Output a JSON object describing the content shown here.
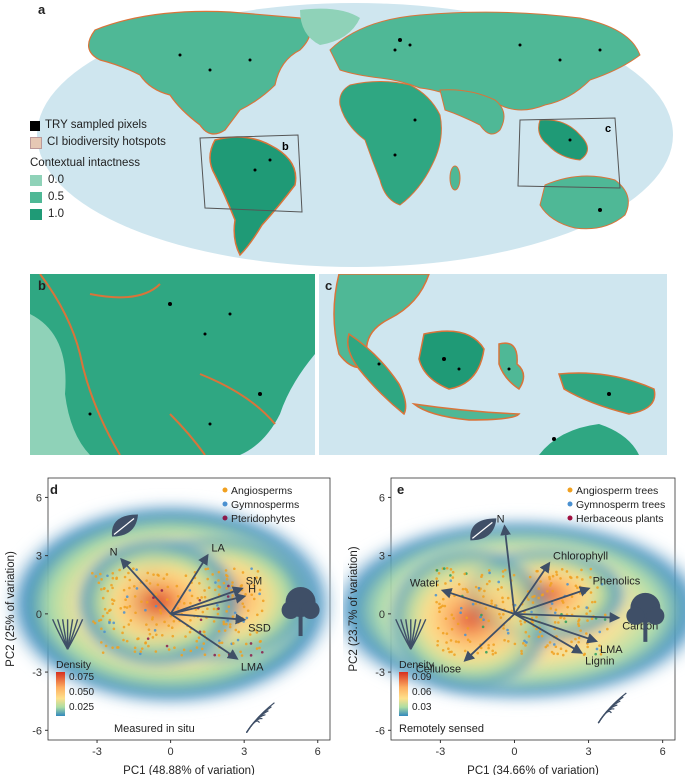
{
  "panels": {
    "a": "a",
    "b": "b",
    "c": "c",
    "d": "d",
    "e": "e",
    "map_box_b": "b",
    "map_box_c": "c"
  },
  "map_legend": {
    "sampled": "TRY sampled pixels",
    "hotspots": "CI biodiversity hotspots",
    "intactness_title": "Contextual intactness",
    "levels": [
      "0.0",
      "0.5",
      "1.0"
    ]
  },
  "colors": {
    "ocean": "#cfe6ef",
    "land_low": "#8fd2b8",
    "land_mid": "#4fb896",
    "land_high": "#1f9a76",
    "hotspot": "#d9743a",
    "arrow": "#3f4f67",
    "angio": "#f0a020",
    "gymno": "#4a90d0",
    "pterido": "#8b1a4a",
    "herb": "#a01040"
  },
  "chart_data": [
    {
      "type": "scatter",
      "panel": "d",
      "xlabel": "PC1 (48.88% of variation)",
      "ylabel": "PC2 (25% of variation)",
      "xlim": [
        -5,
        6.5
      ],
      "ylim": [
        -6.5,
        7
      ],
      "xticks": [
        "-3",
        "0",
        "3",
        "6"
      ],
      "yticks": [
        "6",
        "3",
        "0",
        "-3",
        "-6"
      ],
      "legend_position": "top-right",
      "legend": [
        "Angiosperms",
        "Gymnosperms",
        "Pteridophytes"
      ],
      "density_title": "Density",
      "density_levels": [
        "0.075",
        "0.050",
        "0.025"
      ],
      "note": "Measured in situ",
      "loadings": [
        {
          "label": "N",
          "x": -2.0,
          "y": 2.8
        },
        {
          "label": "LA",
          "x": 1.5,
          "y": 3.0
        },
        {
          "label": "SM",
          "x": 2.9,
          "y": 1.3
        },
        {
          "label": "H",
          "x": 3.0,
          "y": 0.9
        },
        {
          "label": "SSD",
          "x": 3.0,
          "y": -0.3
        },
        {
          "label": "LMA",
          "x": 2.7,
          "y": -2.3
        }
      ]
    },
    {
      "type": "scatter",
      "panel": "e",
      "xlabel": "PC1 (34.66% of variation)",
      "ylabel": "PC2 (23.7% of variation)",
      "xlim": [
        -5,
        6.5
      ],
      "ylim": [
        -6.5,
        7
      ],
      "xticks": [
        "-3",
        "0",
        "3",
        "6"
      ],
      "yticks": [
        "6",
        "3",
        "0",
        "-3",
        "-6"
      ],
      "legend_position": "top-right",
      "legend": [
        "Angiosperm trees",
        "Gymnosperm trees",
        "Herbaceous plants"
      ],
      "density_title": "Density",
      "density_levels": [
        "0.09",
        "0.06",
        "0.03"
      ],
      "note": "Remotely sensed",
      "loadings": [
        {
          "label": "N",
          "x": -0.4,
          "y": 4.5
        },
        {
          "label": "Chlorophyll",
          "x": 1.4,
          "y": 2.6
        },
        {
          "label": "Phenolics",
          "x": 3.0,
          "y": 1.3
        },
        {
          "label": "Carbon",
          "x": 4.2,
          "y": -0.2
        },
        {
          "label": "LMA",
          "x": 3.3,
          "y": -1.4
        },
        {
          "label": "Lignin",
          "x": 2.7,
          "y": -2.0
        },
        {
          "label": "Water",
          "x": -2.9,
          "y": 1.2
        },
        {
          "label": "Cellulose",
          "x": -2.0,
          "y": -2.4
        }
      ]
    }
  ]
}
